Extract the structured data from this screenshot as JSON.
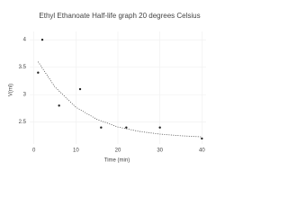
{
  "chart_data": {
    "type": "scatter",
    "title": "Ethyl Ethanoate Half-life graph 20 degrees Celsius",
    "x_label": "Time (min)",
    "y_label": "V(ml)",
    "series": [
      {
        "mode": "markers",
        "color": "#222222",
        "x": [
          1,
          2,
          6,
          11,
          16,
          22,
          30,
          40
        ],
        "values": [
          3.4,
          4.0,
          2.8,
          3.1,
          2.4,
          2.4,
          2.4,
          2.2
        ]
      },
      {
        "mode": "dotted-line",
        "color": "#444444",
        "x": [
          1,
          5,
          10,
          15,
          20,
          25,
          30,
          35,
          40
        ],
        "values": [
          3.6,
          3.14,
          2.77,
          2.55,
          2.41,
          2.33,
          2.28,
          2.25,
          2.23
        ]
      }
    ],
    "xlim": [
      -1,
      41
    ],
    "ylim": [
      2.1,
      4.15
    ],
    "xticks": [
      0,
      10,
      20,
      30,
      40
    ],
    "yticks": [
      2.5,
      3,
      3.5,
      4
    ],
    "grid": true
  }
}
